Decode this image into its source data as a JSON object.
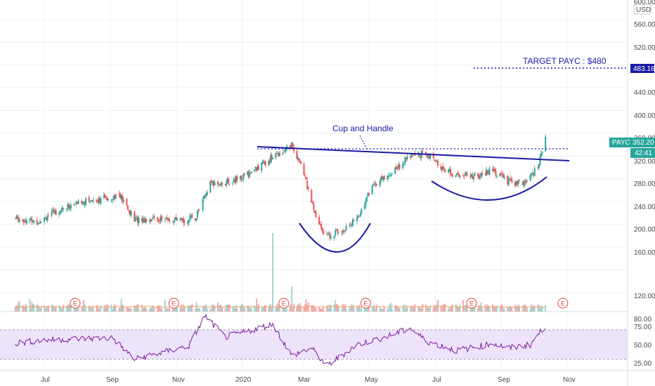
{
  "axis": {
    "currency": "USD",
    "price_ticks": [
      "600.00",
      "560.00",
      "520.00",
      "483.16",
      "440.00",
      "400.00",
      "360.00",
      "320.00",
      "280.00",
      "240.00",
      "200.00",
      "160.00",
      "120.00",
      "80.00"
    ],
    "rsi_ticks": [
      "75.00",
      "50.00",
      "25.00"
    ],
    "x_ticks": [
      "Jul",
      "Sep",
      "Nov",
      "2020",
      "Mar",
      "May",
      "Jul",
      "Sep",
      "Nov"
    ]
  },
  "tags": {
    "target_value": "483.16",
    "symbol": "PAYC",
    "last_price": "352.20",
    "countdown": "42:41"
  },
  "annotations": {
    "pattern": "Cup and Handle",
    "target": "TARGET PAYC : $480"
  },
  "earnings_marker": "E",
  "colors": {
    "up": "#26a69a",
    "down": "#ef5350",
    "drawing": "#1a1aa6",
    "rsi_line": "#7b1fa2",
    "rsi_band": "#ede3fb",
    "earnings": "#e0463c",
    "grid": "#eef0f3"
  },
  "chart_data": [
    {
      "type": "candlestick",
      "symbol": "PAYC",
      "currency": "USD",
      "ylim": [
        60,
        600
      ],
      "x_ticks": [
        "Jul",
        "Sep",
        "Nov",
        "2020",
        "Mar",
        "May",
        "Jul",
        "Sep",
        "Nov"
      ],
      "last_price": 352.2,
      "target_level": 483.16,
      "close_path": {
        "x": [
          "2019-06-03",
          "2019-06-24",
          "2019-07-15",
          "2019-08-05",
          "2019-08-26",
          "2019-09-09",
          "2019-09-23",
          "2019-10-14",
          "2019-11-04",
          "2019-11-18",
          "2019-12-02",
          "2019-12-23",
          "2020-01-13",
          "2020-02-03",
          "2020-02-19",
          "2020-03-02",
          "2020-03-13",
          "2020-03-23",
          "2020-04-06",
          "2020-04-20",
          "2020-05-04",
          "2020-05-18",
          "2020-06-08",
          "2020-06-22",
          "2020-07-06",
          "2020-07-20",
          "2020-08-10",
          "2020-08-24",
          "2020-09-07",
          "2020-09-21",
          "2020-10-05",
          "2020-10-12"
        ],
        "close": [
          210,
          205,
          225,
          240,
          245,
          252,
          208,
          210,
          205,
          212,
          270,
          275,
          295,
          322,
          340,
          290,
          210,
          178,
          190,
          208,
          268,
          285,
          320,
          325,
          300,
          285,
          285,
          295,
          275,
          270,
          300,
          352
        ]
      },
      "volume_spikes": [
        {
          "x": "2020-01-31",
          "volume": "highest"
        },
        {
          "x": "2020-02-19",
          "volume": "high"
        }
      ],
      "earnings_dates": [
        "2019-07-30",
        "2019-10-29",
        "2020-02-11",
        "2020-04-28",
        "2020-08-04",
        "2020-10-28"
      ],
      "drawings": {
        "resistance_trendline": {
          "from": {
            "x": "2020-01-06",
            "y": 342
          },
          "to": {
            "x": "2020-10-26",
            "y": 321
          }
        },
        "breakout_level": 342,
        "cup_bottom": 158,
        "handle_bottom": 250,
        "target": 483.16
      },
      "annotations": [
        "Cup and Handle",
        "TARGET PAYC : $480"
      ]
    },
    {
      "type": "line",
      "name": "RSI",
      "ylim": [
        15,
        95
      ],
      "levels": [
        70,
        30
      ],
      "x": [
        "2019-06-03",
        "2019-07-01",
        "2019-08-01",
        "2019-09-03",
        "2019-09-23",
        "2019-10-15",
        "2019-11-12",
        "2019-11-27",
        "2019-12-16",
        "2020-01-06",
        "2020-01-31",
        "2020-02-19",
        "2020-03-09",
        "2020-03-23",
        "2020-04-20",
        "2020-05-20",
        "2020-06-08",
        "2020-06-22",
        "2020-07-20",
        "2020-08-10",
        "2020-08-24",
        "2020-09-08",
        "2020-09-28",
        "2020-10-12"
      ],
      "values": [
        52,
        56,
        58,
        59,
        30,
        38,
        48,
        89,
        60,
        68,
        78,
        35,
        45,
        21,
        50,
        62,
        72,
        55,
        42,
        47,
        52,
        45,
        50,
        76
      ]
    }
  ]
}
